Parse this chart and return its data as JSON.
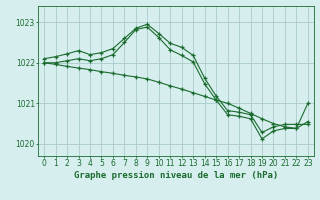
{
  "title": "Graphe pression niveau de la mer (hPa)",
  "background_color": "#d6eeee",
  "grid_color": "#aacccc",
  "line_color": "#1a6b2e",
  "xlim": [
    -0.5,
    23.5
  ],
  "ylim": [
    1019.7,
    1023.4
  ],
  "yticks": [
    1020,
    1021,
    1022,
    1023
  ],
  "xticks": [
    0,
    1,
    2,
    3,
    4,
    5,
    6,
    7,
    8,
    9,
    10,
    11,
    12,
    13,
    14,
    15,
    16,
    17,
    18,
    19,
    20,
    21,
    22,
    23
  ],
  "series1": [
    1022.1,
    1022.15,
    1022.22,
    1022.3,
    1022.2,
    1022.25,
    1022.35,
    1022.6,
    1022.85,
    1022.95,
    1022.72,
    1022.48,
    1022.38,
    1022.18,
    1021.62,
    1021.18,
    1020.82,
    1020.78,
    1020.72,
    1020.28,
    1020.42,
    1020.48,
    1020.48,
    1020.48
  ],
  "series2": [
    1022.0,
    1022.0,
    1022.05,
    1022.1,
    1022.05,
    1022.1,
    1022.2,
    1022.5,
    1022.82,
    1022.88,
    1022.62,
    1022.32,
    1022.18,
    1022.02,
    1021.48,
    1021.08,
    1020.72,
    1020.68,
    1020.62,
    1020.12,
    1020.32,
    1020.38,
    1020.38,
    1021.0
  ],
  "series3": [
    1022.0,
    1021.96,
    1021.91,
    1021.87,
    1021.83,
    1021.78,
    1021.74,
    1021.69,
    1021.65,
    1021.6,
    1021.52,
    1021.43,
    1021.35,
    1021.26,
    1021.17,
    1021.08,
    1021.0,
    1020.88,
    1020.75,
    1020.62,
    1020.5,
    1020.42,
    1020.38,
    1020.55
  ],
  "tick_fontsize": 5.5,
  "label_fontsize": 6.5
}
